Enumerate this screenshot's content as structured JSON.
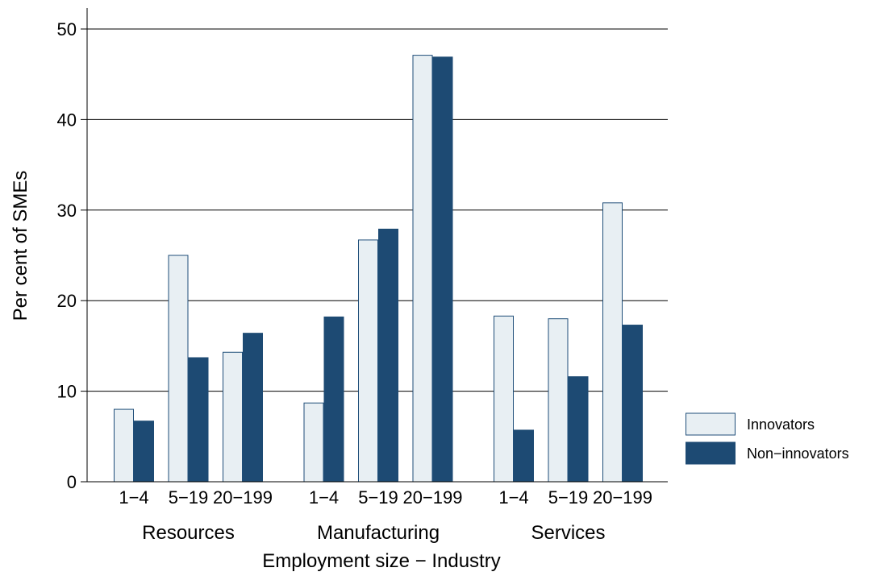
{
  "chart_data": {
    "type": "bar",
    "xlabel": "Employment size − Industry",
    "ylabel": "Per cent of SMEs",
    "ylim": [
      0,
      50
    ],
    "yticks": [
      0,
      10,
      20,
      30,
      40,
      50
    ],
    "grid": true,
    "legend_position": "right",
    "groups": [
      {
        "name": "Resources",
        "categories": [
          "1−4",
          "5−19",
          "20−199"
        ]
      },
      {
        "name": "Manufacturing",
        "categories": [
          "1−4",
          "5−19",
          "20−199"
        ]
      },
      {
        "name": "Services",
        "categories": [
          "1−4",
          "5−19",
          "20−199"
        ]
      }
    ],
    "series": [
      {
        "name": "Innovators",
        "color": "#e8eff3",
        "stroke": "#1f4e79",
        "values": [
          8.0,
          25.0,
          14.3,
          8.7,
          26.7,
          47.1,
          18.3,
          18.0,
          30.8
        ]
      },
      {
        "name": "Non−innovators",
        "color": "#1d4a73",
        "stroke": "#1d4a73",
        "values": [
          6.7,
          13.7,
          16.4,
          18.2,
          27.9,
          46.9,
          5.7,
          11.6,
          17.3
        ]
      }
    ]
  }
}
